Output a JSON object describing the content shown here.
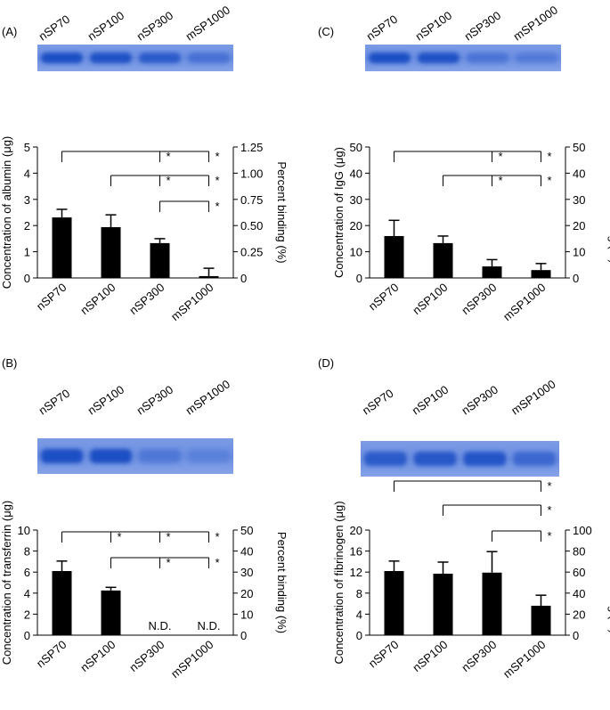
{
  "chart_data": [
    {
      "type": "bar",
      "panel_label": "(A)",
      "y_label": "Concentration of albumin (μg)",
      "y2_label": "Percent binding (%)",
      "categories": [
        "nSP70",
        "nSP100",
        "nSP300",
        "mSP1000"
      ],
      "values": [
        2.31,
        1.94,
        1.33,
        0.07
      ],
      "errors": [
        0.31,
        0.47,
        0.17,
        0.3
      ],
      "color": "#000000",
      "ylim": [
        0,
        5
      ],
      "yticks": [
        0,
        1,
        2,
        3,
        4,
        5
      ],
      "y2lim": [
        0,
        1.25
      ],
      "y2ticks": [
        0,
        0.25,
        {
          "value": 0.5,
          "label": "0.50"
        },
        0.75,
        {
          "value": 1,
          "label": "1.00"
        },
        1.25
      ],
      "brackets": [
        {
          "from": 0,
          "to": [
            2,
            3
          ],
          "labels": [
            "*",
            "*"
          ]
        },
        {
          "from": 1,
          "to": [
            2,
            3
          ],
          "labels": [
            "*",
            "*"
          ]
        },
        {
          "from": 2,
          "to": [
            3
          ],
          "labels": [
            "*"
          ]
        }
      ]
    },
    {
      "type": "bar",
      "panel_label": "(B)",
      "y_label": "Concentration of transferrin (μg)",
      "y2_label": "Percent binding (%)",
      "categories": [
        "nSP70",
        "nSP100",
        "nSP300",
        "mSP1000"
      ],
      "values": [
        6.1,
        4.25,
        null,
        null
      ],
      "errors": [
        0.95,
        0.3,
        null,
        null
      ],
      "value_labels": [
        null,
        null,
        "N.D.",
        "N.D."
      ],
      "color": "#000000",
      "ylim": [
        0,
        10
      ],
      "yticks": [
        0,
        2,
        4,
        6,
        8,
        10
      ],
      "y2lim": [
        0,
        50
      ],
      "y2ticks": [
        0,
        10,
        20,
        30,
        40,
        50
      ],
      "brackets": [
        {
          "from": 0,
          "to": [
            1,
            2,
            3
          ],
          "labels": [
            "*",
            "*",
            "*"
          ]
        },
        {
          "from": 1,
          "to": [
            2,
            3
          ],
          "labels": [
            "*",
            "*"
          ]
        }
      ]
    },
    {
      "type": "bar",
      "panel_label": "(C)",
      "y_label": "Concentration of IgG (μg)",
      "y2_label": "Percent binding (%)",
      "categories": [
        "nSP70",
        "nSP100",
        "nSP300",
        "mSP1000"
      ],
      "values": [
        16,
        13.3,
        4.4,
        3
      ],
      "errors": [
        6,
        2.7,
        2.6,
        2.5
      ],
      "color": "#000000",
      "ylim": [
        0,
        50
      ],
      "yticks": [
        0,
        10,
        20,
        30,
        40,
        50
      ],
      "y2lim": [
        0,
        50
      ],
      "y2ticks": [
        0,
        10,
        20,
        30,
        40,
        50
      ],
      "brackets": [
        {
          "from": 0,
          "to": [
            2,
            3
          ],
          "labels": [
            "*",
            "*"
          ]
        },
        {
          "from": 1,
          "to": [
            2,
            3
          ],
          "labels": [
            "*",
            "*"
          ]
        }
      ]
    },
    {
      "type": "bar",
      "panel_label": "(D)",
      "y_label": "Concentration of fibrinogen (μg)",
      "y2_label": "Percent binding (%)",
      "categories": [
        "nSP70",
        "nSP100",
        "nSP300",
        "mSP1000"
      ],
      "values": [
        12.2,
        11.7,
        11.9,
        5.6
      ],
      "errors": [
        1.9,
        2.2,
        4,
        2
      ],
      "color": "#000000",
      "ylim": [
        0,
        20
      ],
      "yticks": [
        0,
        4,
        8,
        12,
        16,
        20
      ],
      "y2lim": [
        0,
        100
      ],
      "y2ticks": [
        0,
        20,
        40,
        60,
        80,
        100
      ],
      "brackets": [
        {
          "from": 0,
          "to": [
            3
          ],
          "labels": [
            "*"
          ]
        },
        {
          "from": 1,
          "to": [
            3
          ],
          "labels": [
            "*"
          ]
        },
        {
          "from": 2,
          "to": [
            3
          ],
          "labels": [
            "*"
          ]
        }
      ]
    }
  ]
}
